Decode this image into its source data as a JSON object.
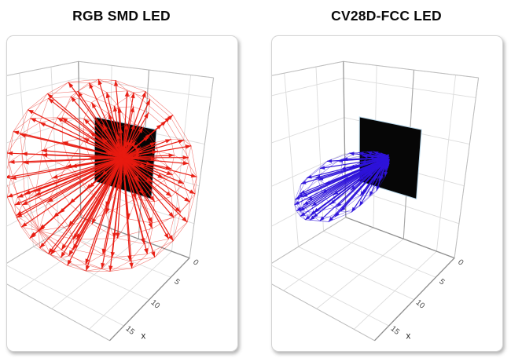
{
  "scene": {
    "grid_color": "#dcdcdc",
    "edge_color": "#bdbdbd",
    "dark_edge_color": "#8f8f8f",
    "pillar_color": "#a8a8a8",
    "tick_color": "#4a4a4a",
    "axis_label_color": "#2a2a2a"
  },
  "chart_data": [
    {
      "type": "3d-quiver",
      "title": "RGB SMD LED",
      "xlabel": "x",
      "x_ticks": [
        0,
        5,
        10,
        15
      ],
      "x_range": [
        0,
        17.5
      ],
      "grid": "on",
      "emitter": "black square LED panel at x=0",
      "beam_axis": "+x",
      "pattern": "wide near-spherical emission lobe (arrows radiate in almost all directions from the panel centre)",
      "radial_profile": "r(theta) ~ 16*(0.40+0.60*cos(0.75*theta)), theta = angle from +x axis",
      "arrow_color_name": "red",
      "render": {
        "arrow_color": "#e81a10",
        "panel_color": "#060606",
        "panel_edge_color": "#b9d9ec",
        "lobe": {
          "kind": "wide",
          "R": 16,
          "a": 0.4,
          "b": 0.6,
          "c": 0.75,
          "tilt_down_deg": 12,
          "theta_deg": [
            15,
            30,
            45,
            60,
            75,
            90,
            105,
            120,
            135,
            150
          ],
          "phi_step_deg": 22.5,
          "line_width": 1.2,
          "head_len": 7,
          "head_half_width": 2.7
        }
      }
    },
    {
      "type": "3d-quiver",
      "title": "CV28D-FCC LED",
      "xlabel": "x",
      "x_ticks": [
        0,
        5,
        10,
        15
      ],
      "x_range": [
        0,
        17.5
      ],
      "grid": "on",
      "emitter": "black square LED panel at x=0",
      "beam_axis": "+x",
      "pattern": "narrow forward beam (tight cigar-shaped lobe of arrows along +x)",
      "radial_profile": "r(theta) ~ 16*cos(theta)^9, theta = angle from +x axis",
      "arrow_color_name": "blue",
      "render": {
        "arrow_color": "#2e13da",
        "panel_color": "#060606",
        "panel_edge_color": "#b9d9ec",
        "lobe": {
          "kind": "narrow",
          "R": 16,
          "n": 9,
          "tilt_down_deg": 3,
          "theta_deg": [
            5,
            11,
            18,
            25,
            32,
            38
          ],
          "phi_step_deg": 30,
          "line_width": 1.2,
          "head_len": 6,
          "head_half_width": 2.4
        }
      }
    }
  ]
}
